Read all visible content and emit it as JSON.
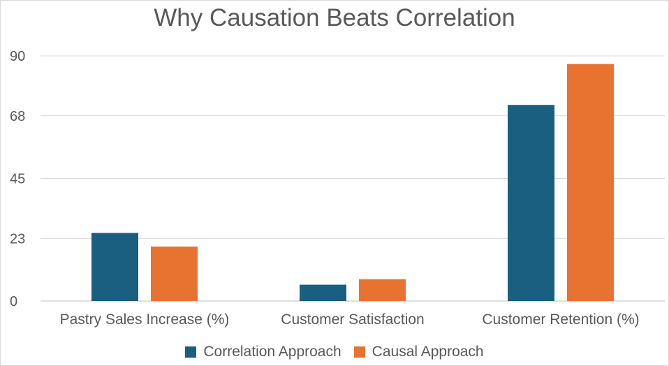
{
  "chart_data": {
    "type": "bar",
    "title": "Why Causation Beats Correlation",
    "categories": [
      "Pastry Sales Increase (%)",
      "Customer Satisfaction",
      "Customer Retention (%)"
    ],
    "series": [
      {
        "name": "Correlation Approach",
        "values": [
          25,
          6,
          72
        ],
        "color": "#1a5f80"
      },
      {
        "name": "Causal Approach",
        "values": [
          20,
          8,
          87
        ],
        "color": "#e87331"
      }
    ],
    "yticks": [
      "0",
      "23",
      "45",
      "68",
      "90"
    ],
    "ylim": [
      0,
      90
    ],
    "xlabel": "",
    "ylabel": "",
    "grid": true,
    "legend_position": "bottom"
  }
}
